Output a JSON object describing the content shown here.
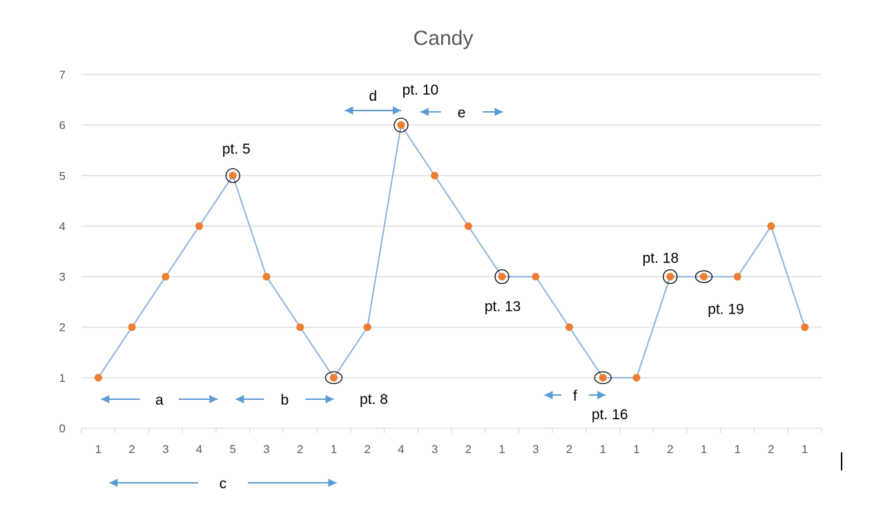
{
  "chart_data": {
    "type": "line",
    "title": "Candy",
    "categories": [
      "1",
      "2",
      "3",
      "4",
      "5",
      "3",
      "2",
      "1",
      "2",
      "4",
      "3",
      "2",
      "1",
      "3",
      "2",
      "1",
      "1",
      "2",
      "1",
      "1",
      "2",
      "1"
    ],
    "series": [
      {
        "values": [
          1,
          2,
          3,
          4,
          5,
          3,
          2,
          1,
          2,
          6,
          5,
          4,
          3,
          3,
          2,
          1,
          1,
          3,
          3,
          3,
          4,
          2
        ],
        "color": "#ed7d31",
        "line_color": "#8fb1dc"
      }
    ],
    "yticks": [
      "0",
      "1",
      "2",
      "3",
      "4",
      "5",
      "6",
      "7"
    ],
    "ylim": [
      0,
      7
    ],
    "grid": true,
    "annotations": {
      "points": [
        {
          "label": "pt. 5",
          "index": 4
        },
        {
          "label": "pt. 8",
          "index": 7
        },
        {
          "label": "pt. 10",
          "index": 9
        },
        {
          "label": "pt. 13",
          "index": 12
        },
        {
          "label": "pt. 16",
          "index": 15
        },
        {
          "label": "pt. 18",
          "index": 17
        },
        {
          "label": "pt. 19",
          "index": 18
        }
      ],
      "spans": [
        {
          "label": "a",
          "from": 0,
          "to": 4
        },
        {
          "label": "b",
          "from": 4,
          "to": 7
        },
        {
          "label": "c",
          "from": 0,
          "to": 7
        },
        {
          "label": "d",
          "from": 7,
          "to": 9
        },
        {
          "label": "e",
          "from": 9,
          "to": 11
        },
        {
          "label": "f",
          "from": 14,
          "to": 15
        }
      ]
    }
  }
}
